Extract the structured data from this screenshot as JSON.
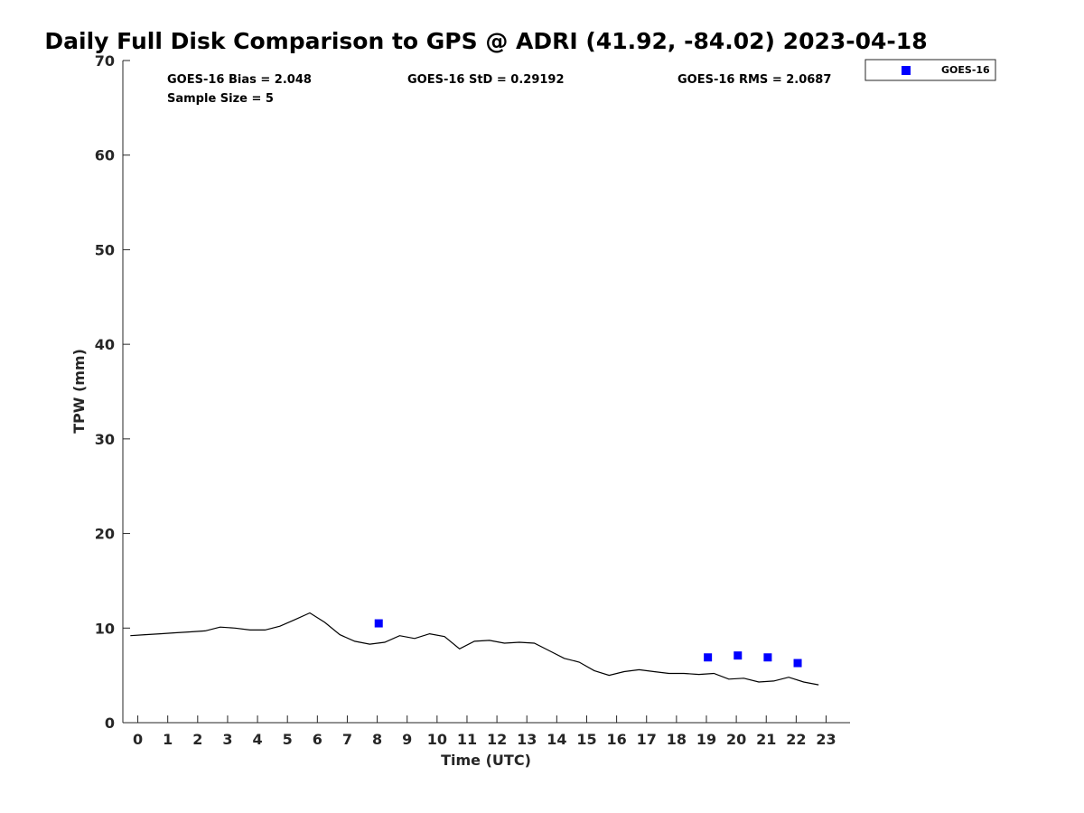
{
  "chart_data": {
    "type": "scatter",
    "title": "Daily Full Disk Comparison to GPS @ ADRI (41.92, -84.02) 2023-04-18",
    "xlabel": "Time (UTC)",
    "ylabel": "TPW (mm)",
    "xlim": [
      -0.5,
      23.8
    ],
    "ylim": [
      0,
      70
    ],
    "x_ticks": [
      0,
      1,
      2,
      3,
      4,
      5,
      6,
      7,
      8,
      9,
      10,
      11,
      12,
      13,
      14,
      15,
      16,
      17,
      18,
      19,
      20,
      21,
      22,
      23
    ],
    "y_ticks": [
      0,
      10,
      20,
      30,
      40,
      50,
      60,
      70
    ],
    "grid": false,
    "legend_position": "top-right, outside axes",
    "stats": {
      "bias": "GOES-16 Bias = 2.048",
      "std": "GOES-16 StD = 0.29192",
      "rms": "GOES-16 RMS = 2.0687",
      "sample": "Sample Size = 5"
    },
    "series": [
      {
        "name": "GOES-16",
        "kind": "scatter",
        "marker": "square",
        "color": "#0000ff",
        "x": [
          8.05,
          19.05,
          20.05,
          21.05,
          22.05
        ],
        "y": [
          10.5,
          6.9,
          7.1,
          6.9,
          6.3
        ]
      },
      {
        "kind": "line",
        "color": "#000000",
        "x": [
          -0.25,
          0.25,
          0.75,
          1.25,
          1.75,
          2.25,
          2.75,
          3.25,
          3.75,
          4.25,
          4.75,
          5.25,
          5.75,
          6.25,
          6.75,
          7.25,
          7.75,
          8.25,
          8.75,
          9.25,
          9.75,
          10.25,
          10.75,
          11.25,
          11.75,
          12.25,
          12.75,
          13.25,
          13.75,
          14.25,
          14.75,
          15.25,
          15.75,
          16.25,
          16.75,
          17.25,
          17.75,
          18.25,
          18.75,
          19.25,
          19.75,
          20.25,
          20.75,
          21.25,
          21.75,
          22.25,
          22.75
        ],
        "y": [
          9.2,
          9.3,
          9.4,
          9.5,
          9.6,
          9.7,
          10.1,
          10.0,
          9.8,
          9.8,
          10.2,
          10.9,
          11.6,
          10.6,
          9.3,
          8.6,
          8.3,
          8.5,
          9.2,
          8.9,
          9.4,
          9.1,
          7.8,
          8.6,
          8.7,
          8.4,
          8.5,
          8.4,
          7.6,
          6.8,
          6.4,
          5.5,
          5.0,
          5.4,
          5.6,
          5.4,
          5.2,
          5.2,
          5.1,
          5.2,
          4.6,
          4.7,
          4.3,
          4.4,
          4.8,
          4.3,
          4.0
        ]
      }
    ]
  }
}
